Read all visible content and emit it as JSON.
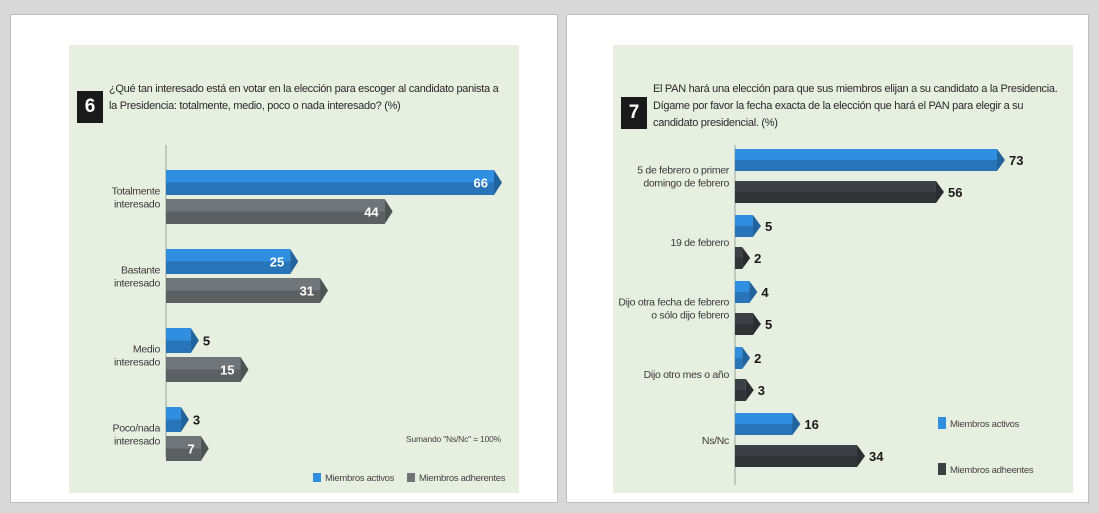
{
  "colors": {
    "activos": "#2f8ee0",
    "adherentes_left": "#707579",
    "adherentes_right": "#3c3f43",
    "card_bg": "#e7efe0"
  },
  "chart_data": [
    {
      "type": "bar",
      "number": "6",
      "title": "¿Qué tan interesado está en votar en la elección para escoger al candidato panista a la Presidencia: totalmente, medio, poco o nada interesado? (%)",
      "categories": [
        [
          "Totalmente",
          "interesado"
        ],
        [
          "Bastante",
          "interesado"
        ],
        [
          "Medio",
          "interesado"
        ],
        [
          "Poco/nada",
          "interesado"
        ]
      ],
      "series": [
        {
          "name": "Miembros activos",
          "values": [
            66,
            25,
            5,
            3
          ]
        },
        {
          "name": "Miembros adherentes",
          "values": [
            44,
            31,
            15,
            7
          ]
        }
      ],
      "note": "Sumando \"Ns/Nc\" = 100%",
      "xlim": [
        0,
        66
      ],
      "legend_position": "bottom"
    },
    {
      "type": "bar",
      "number": "7",
      "title": "El PAN hará una elección para que sus miembros elijan a su candidato a la Presidencia. Dígame por favor la fecha exacta de la elección que hará el PAN para elegir a su candidato presidencial. (%)",
      "categories": [
        [
          "5 de febrero o primer",
          "domingo de febrero"
        ],
        [
          "19 de febrero"
        ],
        [
          "Dijo otra fecha de febrero",
          "o sólo dijo febrero"
        ],
        [
          "Dijo otro mes o año"
        ],
        [
          "Ns/Nc"
        ]
      ],
      "series": [
        {
          "name": "Miembros activos",
          "values": [
            73,
            5,
            4,
            2,
            16
          ]
        },
        {
          "name": "Miembros adheentes",
          "values": [
            56,
            2,
            5,
            3,
            34
          ]
        }
      ],
      "xlim": [
        0,
        73
      ],
      "legend_position": "right"
    }
  ]
}
